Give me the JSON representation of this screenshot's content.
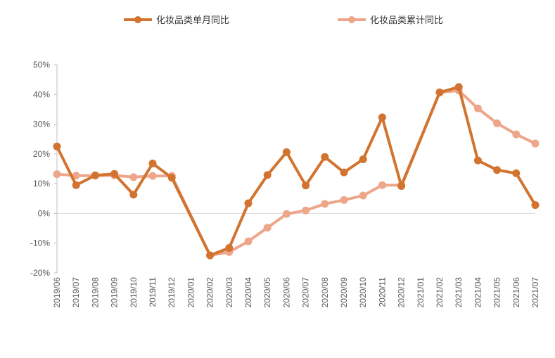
{
  "chart_data": {
    "type": "line",
    "title": "",
    "xlabel": "",
    "ylabel": "",
    "ylim": [
      -20,
      50
    ],
    "yticks": [
      -20,
      -10,
      0,
      10,
      20,
      30,
      40,
      50
    ],
    "y_tick_labels": [
      "-20%",
      "-10%",
      "0%",
      "10%",
      "20%",
      "30%",
      "40%",
      "50%"
    ],
    "grid": false,
    "legend_position": "top",
    "categories": [
      "2019/06",
      "2019/07",
      "2019/08",
      "2019/09",
      "2019/10",
      "2019/11",
      "2019/12",
      "2020/01",
      "2020/02",
      "2020/03",
      "2020/04",
      "2020/05",
      "2020/06",
      "2020/07",
      "2020/08",
      "2020/09",
      "2020/10",
      "2020/11",
      "2020/12",
      "2021/01",
      "2021/02",
      "2021/03",
      "2021/04",
      "2021/05",
      "2021/06",
      "2021/07"
    ],
    "series": [
      {
        "name": "化妆品类单月同比",
        "color": "#D2732F",
        "values": [
          22.5,
          9.5,
          12.8,
          13.3,
          6.3,
          16.8,
          12.0,
          null,
          -14.1,
          -11.6,
          3.4,
          12.9,
          20.6,
          9.4,
          19.0,
          13.8,
          18.2,
          32.3,
          9.2,
          null,
          40.7,
          42.5,
          17.8,
          14.6,
          13.5,
          2.8
        ]
      },
      {
        "name": "化妆品类累计同比",
        "color": "#EEA68B",
        "values": [
          13.2,
          12.7,
          12.7,
          12.8,
          12.2,
          12.6,
          12.6,
          null,
          -14.1,
          -13.0,
          -9.4,
          -4.8,
          -0.2,
          1.0,
          3.2,
          4.5,
          6.0,
          9.5,
          9.5,
          null,
          40.7,
          41.3,
          35.3,
          30.3,
          26.6,
          23.5
        ]
      }
    ]
  }
}
